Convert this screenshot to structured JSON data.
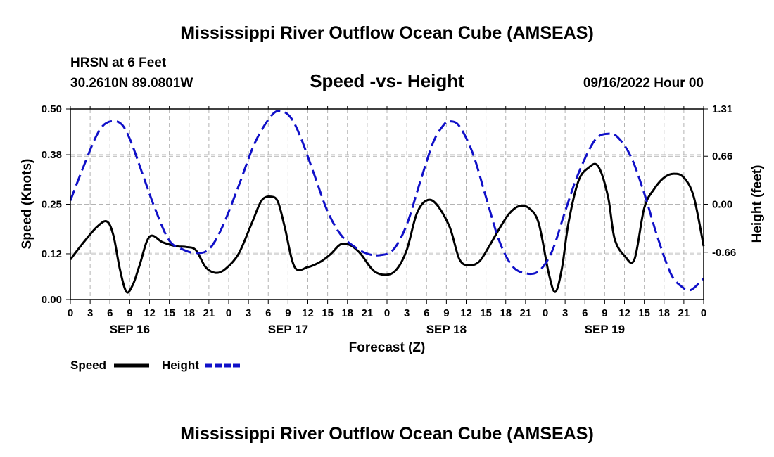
{
  "page": {
    "title_top": "Mississippi River Outflow Ocean Cube (AMSEAS)",
    "title_bottom": "Mississippi River Outflow Ocean Cube (AMSEAS)",
    "station": "HRSN at 6 Feet",
    "coords": "30.2610N  89.0801W",
    "chart_title": "Speed -vs- Height",
    "date": "09/16/2022 Hour 00"
  },
  "legend": {
    "speed": "Speed",
    "height": "Height"
  },
  "colors": {
    "speed": "#000000",
    "height": "#1010c8",
    "grid": "#b4b4b4"
  },
  "chart_data": {
    "type": "line",
    "title": "Speed -vs- Height",
    "xlabel": "Forecast (Z)",
    "ylabel": "Speed (Knots)",
    "y2label": "Height (feet)",
    "xlim": [
      0,
      96
    ],
    "ylim": [
      0,
      0.5
    ],
    "y2lim": [
      -1.31,
      1.31
    ],
    "x_ticks": [
      0,
      3,
      6,
      9,
      12,
      15,
      18,
      21,
      24,
      27,
      30,
      33,
      36,
      39,
      42,
      45,
      48,
      51,
      54,
      57,
      60,
      63,
      66,
      69,
      72,
      75,
      78,
      81,
      84,
      87,
      90,
      93,
      96
    ],
    "x_tick_labels": [
      "0",
      "3",
      "6",
      "9",
      "12",
      "15",
      "18",
      "21",
      "0",
      "3",
      "6",
      "9",
      "12",
      "15",
      "18",
      "21",
      "0",
      "3",
      "6",
      "9",
      "12",
      "15",
      "18",
      "21",
      "0",
      "3",
      "6",
      "9",
      "12",
      "15",
      "18",
      "21",
      "0"
    ],
    "y_ticks": [
      0.0,
      0.12,
      0.25,
      0.38,
      0.5
    ],
    "y_tick_labels": [
      "0.00",
      "0.12",
      "0.25",
      "0.38",
      "0.50"
    ],
    "y2_ticks": [
      -0.66,
      0.0,
      0.66,
      1.31
    ],
    "y2_tick_labels": [
      "-0.66",
      "0.00",
      "0.66",
      "1.31"
    ],
    "dates": [
      {
        "label": "SEP 16",
        "x": 9
      },
      {
        "label": "SEP 17",
        "x": 33
      },
      {
        "label": "SEP 18",
        "x": 57
      },
      {
        "label": "SEP 19",
        "x": 81
      }
    ],
    "series": [
      {
        "name": "Speed",
        "axis": "left",
        "style": "solid",
        "x": [
          0,
          2,
          4,
          5.5,
          6.5,
          7.5,
          8.5,
          9.5,
          10.5,
          12,
          14,
          16,
          17.5,
          19,
          20.5,
          22,
          23.5,
          25.5,
          27.5,
          29,
          30.5,
          31.5,
          32.5,
          34,
          36,
          38,
          39.5,
          41,
          42.5,
          44,
          46,
          48,
          49.5,
          51,
          52.5,
          54,
          55.5,
          57.5,
          59,
          60.5,
          62,
          63.5,
          65,
          66.5,
          68,
          69.5,
          71,
          72.5,
          73.5,
          74.5,
          75.5,
          77,
          78.5,
          80,
          81.5,
          82.5,
          84,
          85.5,
          87,
          88.5,
          90,
          91.5,
          93,
          94.5,
          96
        ],
        "values": [
          0.105,
          0.15,
          0.19,
          0.205,
          0.17,
          0.08,
          0.02,
          0.04,
          0.09,
          0.165,
          0.15,
          0.14,
          0.138,
          0.13,
          0.085,
          0.07,
          0.08,
          0.12,
          0.2,
          0.26,
          0.27,
          0.255,
          0.19,
          0.085,
          0.085,
          0.1,
          0.12,
          0.145,
          0.142,
          0.12,
          0.075,
          0.065,
          0.08,
          0.13,
          0.225,
          0.26,
          0.25,
          0.19,
          0.105,
          0.09,
          0.1,
          0.14,
          0.185,
          0.225,
          0.245,
          0.24,
          0.2,
          0.07,
          0.02,
          0.08,
          0.2,
          0.31,
          0.345,
          0.35,
          0.27,
          0.16,
          0.115,
          0.105,
          0.24,
          0.29,
          0.32,
          0.33,
          0.32,
          0.27,
          0.14
        ]
      },
      {
        "name": "Height",
        "axis": "right",
        "style": "dashed",
        "x": [
          0,
          2,
          4,
          5.5,
          7.5,
          9,
          11,
          13,
          15,
          17,
          19,
          21,
          23,
          25.5,
          28,
          30.5,
          32,
          33.5,
          35,
          37,
          39,
          41,
          43,
          45,
          47,
          49,
          51,
          53,
          55,
          56.5,
          57.5,
          59,
          61,
          63,
          65,
          67,
          69,
          71,
          73,
          75,
          77,
          79.5,
          81.5,
          83,
          85,
          87,
          89,
          91,
          92.5,
          94,
          96
        ],
        "values": [
          0.05,
          0.52,
          0.95,
          1.12,
          1.12,
          0.9,
          0.4,
          -0.1,
          -0.5,
          -0.62,
          -0.67,
          -0.62,
          -0.32,
          0.25,
          0.85,
          1.22,
          1.28,
          1.18,
          0.9,
          0.4,
          -0.1,
          -0.42,
          -0.58,
          -0.68,
          -0.7,
          -0.62,
          -0.28,
          0.3,
          0.85,
          1.08,
          1.14,
          1.07,
          0.7,
          0.1,
          -0.5,
          -0.85,
          -0.95,
          -0.92,
          -0.65,
          -0.1,
          0.42,
          0.88,
          0.97,
          0.92,
          0.65,
          0.15,
          -0.45,
          -0.95,
          -1.12,
          -1.18,
          -1.02
        ]
      }
    ]
  }
}
